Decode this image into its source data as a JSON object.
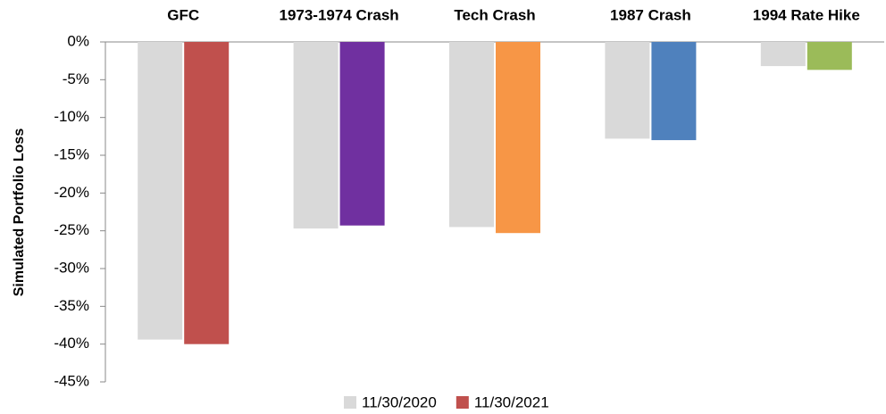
{
  "chart_data": {
    "type": "bar",
    "y_label": "Simulated Portfolio Loss",
    "categories": [
      "GFC",
      "1973-1974 Crash",
      "Tech Crash",
      "1987 Crash",
      "1994 Rate Hike"
    ],
    "series": [
      {
        "name": "11/30/2020",
        "color": "#d9d9d9",
        "values": [
          -39.4,
          -24.7,
          -24.5,
          -12.8,
          -3.2
        ]
      },
      {
        "name": "11/30/2021",
        "color": "#c0504d",
        "colors": [
          "#c0504d",
          "#7030a0",
          "#f79646",
          "#4f81bd",
          "#9bbb59"
        ],
        "values": [
          -40.0,
          -24.3,
          -25.3,
          -13.0,
          -3.7
        ]
      }
    ],
    "ylim": [
      -45,
      0
    ],
    "yticks": [
      {
        "value": 0,
        "label": "0%"
      },
      {
        "value": -5,
        "label": "-5%"
      },
      {
        "value": -10,
        "label": "-10%"
      },
      {
        "value": -15,
        "label": "-15%"
      },
      {
        "value": -20,
        "label": "-20%"
      },
      {
        "value": -25,
        "label": "-25%"
      },
      {
        "value": -30,
        "label": "-30%"
      },
      {
        "value": -35,
        "label": "-35%"
      },
      {
        "value": -40,
        "label": "-40%"
      },
      {
        "value": -45,
        "label": "-45%"
      }
    ],
    "legend": "bottom"
  }
}
